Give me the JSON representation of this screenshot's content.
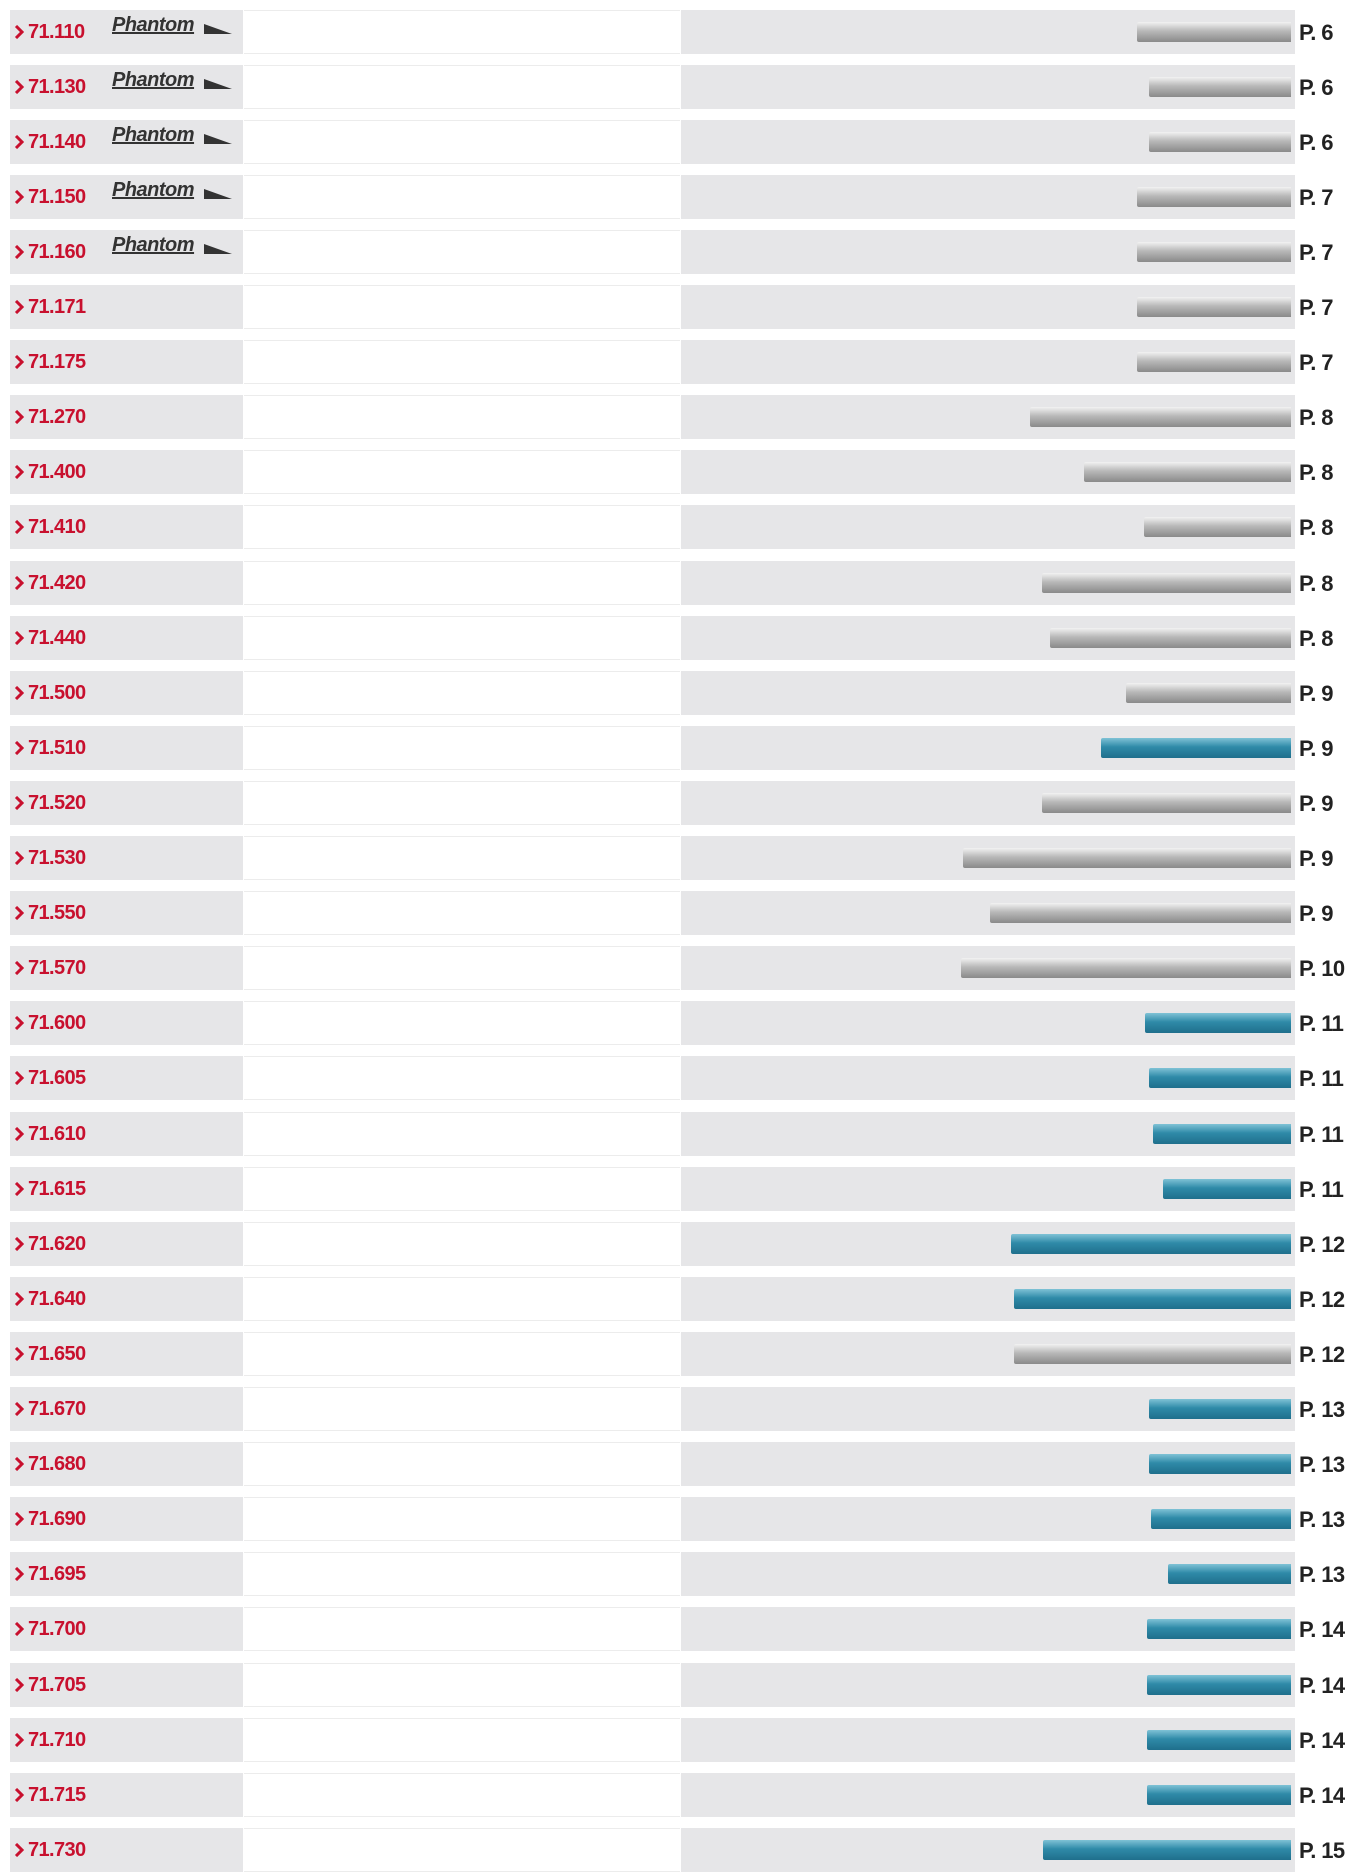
{
  "rows": [
    {
      "code": "71.110",
      "brand": "Phantom",
      "page": "P. 6"
    },
    {
      "code": "71.130",
      "brand": "Phantom",
      "page": "P. 6"
    },
    {
      "code": "71.140",
      "brand": "Phantom",
      "page": "P. 6"
    },
    {
      "code": "71.150",
      "brand": "Phantom",
      "page": "P. 7"
    },
    {
      "code": "71.160",
      "brand": "Phantom",
      "page": "P. 7"
    },
    {
      "code": "71.171",
      "page": "P. 7"
    },
    {
      "code": "71.175",
      "page": "P. 7"
    },
    {
      "code": "71.270",
      "page": "P. 8"
    },
    {
      "code": "71.400",
      "page": "P. 8"
    },
    {
      "code": "71.410",
      "page": "P. 8"
    },
    {
      "code": "71.420",
      "page": "P. 8"
    },
    {
      "code": "71.440",
      "page": "P. 8"
    },
    {
      "code": "71.500",
      "page": "P. 9"
    },
    {
      "code": "71.510",
      "page": "P. 9"
    },
    {
      "code": "71.520",
      "page": "P. 9"
    },
    {
      "code": "71.530",
      "page": "P. 9"
    },
    {
      "code": "71.550",
      "page": "P. 9"
    },
    {
      "code": "71.570",
      "page": "P. 10"
    },
    {
      "code": "71.600",
      "page": "P. 11"
    },
    {
      "code": "71.605",
      "page": "P. 11"
    },
    {
      "code": "71.610",
      "page": "P. 11"
    },
    {
      "code": "71.615",
      "page": "P. 11"
    },
    {
      "code": "71.620",
      "page": "P. 12"
    },
    {
      "code": "71.640",
      "page": "P. 12"
    },
    {
      "code": "71.650",
      "page": "P. 12"
    },
    {
      "code": "71.670",
      "page": "P. 13"
    },
    {
      "code": "71.680",
      "page": "P. 13"
    },
    {
      "code": "71.690",
      "page": "P. 13"
    },
    {
      "code": "71.695",
      "page": "P. 13"
    },
    {
      "code": "71.700",
      "page": "P. 14"
    },
    {
      "code": "71.705",
      "page": "P. 14"
    },
    {
      "code": "71.710",
      "page": "P. 14"
    },
    {
      "code": "71.715",
      "page": "P. 14"
    },
    {
      "code": "71.730",
      "page": "P. 15"
    }
  ]
}
